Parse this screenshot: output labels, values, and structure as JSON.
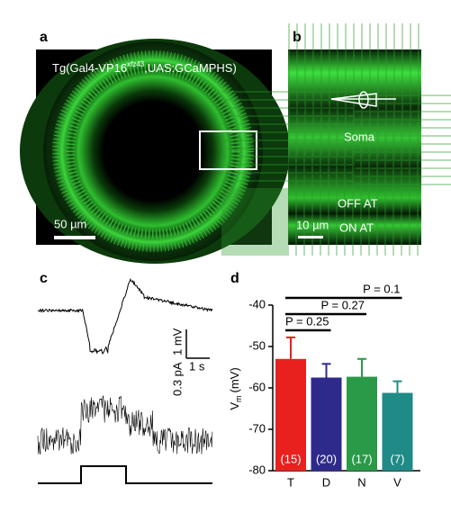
{
  "panel_a": {
    "label": "a",
    "title_main": "Tg(Gal4-VP16",
    "title_sup": "xfz43",
    "title_rest": ",UAS:GCaMPHS)",
    "scale": "50 µm"
  },
  "panel_b": {
    "label": "b",
    "soma": "Soma",
    "off": "OFF AT",
    "scale": "10 µm",
    "on": "ON AT"
  },
  "panel_c": {
    "label": "c",
    "current": "0.3 pA",
    "voltage": "1 mV",
    "time": "1 s"
  },
  "chart_data": {
    "type": "bar",
    "label": "d",
    "ylabel_main": "V",
    "ylabel_sub": "m",
    "ylabel_unit": "(mV)",
    "categories": [
      "T",
      "D",
      "N",
      "V"
    ],
    "values": [
      -53,
      -57.5,
      -57.3,
      -61.2
    ],
    "errors": [
      5.2,
      3.3,
      4.3,
      2.8
    ],
    "colors": [
      "#e8201e",
      "#2e2a8c",
      "#2a9a48",
      "#1f8a86"
    ],
    "n_labels": [
      "(15)",
      "(20)",
      "(17)",
      "(7)"
    ],
    "ylim": [
      -80,
      -40
    ],
    "yticks": [
      -40,
      -50,
      -60,
      -70,
      -80
    ],
    "comparisons": [
      {
        "text": "P = 0.25",
        "from": 0,
        "to": 1
      },
      {
        "text": "P = 0.27",
        "from": 0,
        "to": 2
      },
      {
        "text": "P = 0.1",
        "from": 0,
        "to": 3
      }
    ]
  }
}
